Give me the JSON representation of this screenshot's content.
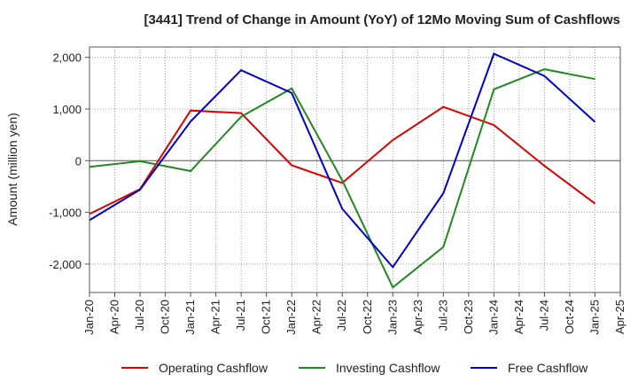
{
  "chart_data": {
    "type": "line",
    "title": "[3441]  Trend of Change in Amount (YoY) of 12Mo Moving Sum of Cashflows",
    "xlabel": "",
    "ylabel": "Amount (million yen)",
    "ylim": [
      -2550,
      2200
    ],
    "yticks": [
      -2000,
      -1000,
      0,
      1000,
      2000
    ],
    "ytick_labels": [
      "-2,000",
      "-1,000",
      "0",
      "1,000",
      "2,000"
    ],
    "x_tick_labels": [
      "Jan-20",
      "Apr-20",
      "Jul-20",
      "Oct-20",
      "Jan-21",
      "Apr-21",
      "Jul-21",
      "Oct-21",
      "Jan-22",
      "Apr-22",
      "Jul-22",
      "Oct-22",
      "Jan-23",
      "Apr-23",
      "Jul-23",
      "Oct-23",
      "Jan-24",
      "Apr-24",
      "Jul-24",
      "Oct-24",
      "Jan-25",
      "Apr-25"
    ],
    "x": [
      "Jan-20",
      "Jul-20",
      "Jan-21",
      "Jul-21",
      "Jan-22",
      "Jul-22",
      "Jan-23",
      "Jul-23",
      "Jan-24",
      "Jul-24",
      "Jan-25"
    ],
    "grid": true,
    "legend_position": "bottom",
    "series": [
      {
        "name": "Operating Cashflow",
        "color": "#dd0000",
        "values": [
          -1030,
          -550,
          970,
          920,
          -90,
          -430,
          400,
          1040,
          690,
          -100,
          -830
        ]
      },
      {
        "name": "Investing Cashflow",
        "color": "#228822",
        "values": [
          -120,
          -10,
          -200,
          850,
          1400,
          -380,
          -2450,
          -1670,
          1380,
          1770,
          1580
        ]
      },
      {
        "name": "Free Cashflow",
        "color": "#0000cc",
        "values": [
          -1150,
          -560,
          760,
          1750,
          1310,
          -930,
          -2060,
          -630,
          2070,
          1640,
          750
        ]
      }
    ]
  }
}
